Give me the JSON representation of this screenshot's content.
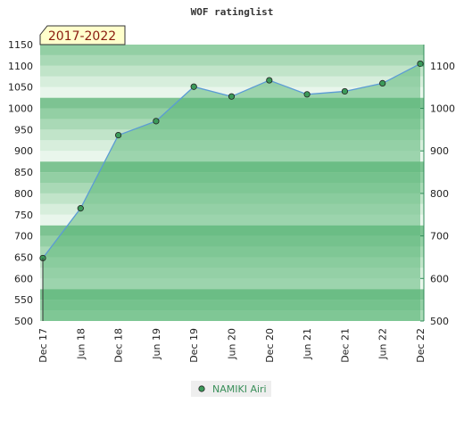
{
  "chart_data": {
    "type": "area",
    "title": "WOF ratinglist",
    "period_badge": "2017-2022",
    "categories": [
      "Dec 17",
      "Jun 18",
      "Dec 18",
      "Jun 19",
      "Dec 19",
      "Jun 20",
      "Dec 20",
      "Jun 21",
      "Dec 21",
      "Jun 22",
      "Dec 22"
    ],
    "series": [
      {
        "name": "NAMIKI Airi",
        "values": [
          648,
          765,
          937,
          970,
          1051,
          1028,
          1066,
          1033,
          1040,
          1059,
          1105
        ]
      }
    ],
    "y_left_ticks": [
      500,
      550,
      600,
      650,
      700,
      750,
      800,
      850,
      900,
      950,
      1000,
      1050,
      1100,
      1150
    ],
    "y_right_ticks": [
      500,
      600,
      700,
      800,
      900,
      1000,
      1100
    ],
    "ylim": [
      500,
      1150
    ],
    "grid": false,
    "legend_position": "bottom-center"
  },
  "colors": {
    "area_fill": "#5cb87a",
    "line": "#5b9bd5",
    "marker": "#3c9a5a",
    "badge_bg": "#ffffcc",
    "legend_bg": "#eeeeee"
  }
}
